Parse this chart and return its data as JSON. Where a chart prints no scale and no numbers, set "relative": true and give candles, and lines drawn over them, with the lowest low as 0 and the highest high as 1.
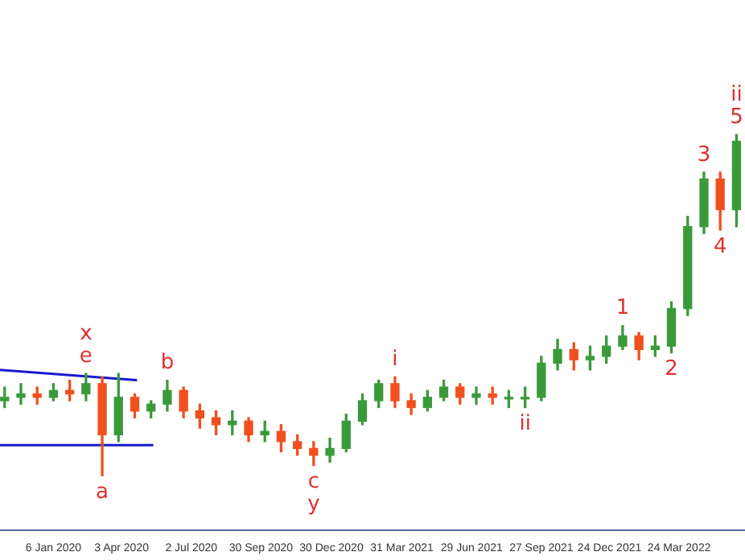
{
  "chart_data": {
    "type": "candlestick",
    "relative": true,
    "x": [
      "2019-11-04",
      "2019-11-25",
      "2019-12-16",
      "2020-01-06",
      "2020-01-27",
      "2020-02-17",
      "2020-03-09",
      "2020-03-30",
      "2020-04-20",
      "2020-05-11",
      "2020-06-01",
      "2020-06-22",
      "2020-07-13",
      "2020-08-03",
      "2020-08-24",
      "2020-09-14",
      "2020-10-05",
      "2020-10-26",
      "2020-11-16",
      "2020-12-07",
      "2020-12-28",
      "2021-01-18",
      "2021-02-08",
      "2021-03-01",
      "2021-03-22",
      "2021-04-12",
      "2021-05-03",
      "2021-05-24",
      "2021-06-14",
      "2021-07-05",
      "2021-07-26",
      "2021-08-16",
      "2021-09-06",
      "2021-09-27",
      "2021-10-18",
      "2021-11-08",
      "2021-11-29",
      "2021-12-20",
      "2022-01-10",
      "2022-01-31",
      "2022-02-21",
      "2022-03-14",
      "2022-04-04",
      "2022-04-25",
      "2022-05-16",
      "2022-06-06"
    ],
    "ohlc": [
      [
        0.22,
        0.26,
        0.2,
        0.23
      ],
      [
        0.23,
        0.27,
        0.21,
        0.24
      ],
      [
        0.24,
        0.26,
        0.21,
        0.23
      ],
      [
        0.23,
        0.27,
        0.22,
        0.25
      ],
      [
        0.25,
        0.28,
        0.22,
        0.24
      ],
      [
        0.24,
        0.3,
        0.22,
        0.27
      ],
      [
        0.27,
        0.29,
        0,
        0.12
      ],
      [
        0.12,
        0.3,
        0.1,
        0.23
      ],
      [
        0.23,
        0.24,
        0.17,
        0.19
      ],
      [
        0.19,
        0.22,
        0.17,
        0.21
      ],
      [
        0.21,
        0.28,
        0.19,
        0.25
      ],
      [
        0.25,
        0.26,
        0.17,
        0.19
      ],
      [
        0.19,
        0.21,
        0.14,
        0.17
      ],
      [
        0.17,
        0.19,
        0.12,
        0.15
      ],
      [
        0.15,
        0.19,
        0.12,
        0.16
      ],
      [
        0.16,
        0.17,
        0.1,
        0.12
      ],
      [
        0.12,
        0.16,
        0.1,
        0.13
      ],
      [
        0.13,
        0.15,
        0.07,
        0.1
      ],
      [
        0.1,
        0.12,
        0.06,
        0.08
      ],
      [
        0.08,
        0.1,
        0.03,
        0.06
      ],
      [
        0.06,
        0.11,
        0.04,
        0.08
      ],
      [
        0.08,
        0.18,
        0.07,
        0.16
      ],
      [
        0.16,
        0.24,
        0.15,
        0.22
      ],
      [
        0.22,
        0.28,
        0.2,
        0.27
      ],
      [
        0.27,
        0.29,
        0.2,
        0.22
      ],
      [
        0.22,
        0.24,
        0.18,
        0.2
      ],
      [
        0.2,
        0.25,
        0.19,
        0.23
      ],
      [
        0.23,
        0.28,
        0.22,
        0.26
      ],
      [
        0.26,
        0.27,
        0.21,
        0.23
      ],
      [
        0.23,
        0.26,
        0.21,
        0.24
      ],
      [
        0.24,
        0.26,
        0.21,
        0.23
      ],
      [
        0.23,
        0.25,
        0.2,
        0.23
      ],
      [
        0.23,
        0.26,
        0.2,
        0.23
      ],
      [
        0.23,
        0.35,
        0.22,
        0.33
      ],
      [
        0.33,
        0.4,
        0.31,
        0.37
      ],
      [
        0.37,
        0.39,
        0.31,
        0.34
      ],
      [
        0.34,
        0.38,
        0.31,
        0.35
      ],
      [
        0.35,
        0.41,
        0.33,
        0.38
      ],
      [
        0.38,
        0.44,
        0.37,
        0.41
      ],
      [
        0.41,
        0.42,
        0.34,
        0.37
      ],
      [
        0.37,
        0.41,
        0.35,
        0.38
      ],
      [
        0.38,
        0.51,
        0.36,
        0.49
      ],
      [
        0.49,
        0.76,
        0.47,
        0.73
      ],
      [
        0.73,
        0.89,
        0.71,
        0.87
      ],
      [
        0.87,
        0.89,
        0.72,
        0.78
      ],
      [
        0.78,
        1,
        0.73,
        0.98
      ]
    ],
    "colors": [
      "#3a9a3a",
      "#3a9a3a",
      "#f0501e",
      "#3a9a3a",
      "#f0501e",
      "#3a9a3a",
      "#f0501e",
      "#3a9a3a",
      "#f0501e",
      "#3a9a3a",
      "#3a9a3a",
      "#f0501e",
      "#f0501e",
      "#f0501e",
      "#3a9a3a",
      "#f0501e",
      "#3a9a3a",
      "#f0501e",
      "#f0501e",
      "#f0501e",
      "#3a9a3a",
      "#3a9a3a",
      "#3a9a3a",
      "#3a9a3a",
      "#f0501e",
      "#f0501e",
      "#3a9a3a",
      "#3a9a3a",
      "#f0501e",
      "#3a9a3a",
      "#f0501e",
      "#3a9a3a",
      "#3a9a3a",
      "#3a9a3a",
      "#3a9a3a",
      "#f0501e",
      "#3a9a3a",
      "#3a9a3a",
      "#3a9a3a",
      "#f0501e",
      "#3a9a3a",
      "#3a9a3a",
      "#3a9a3a",
      "#3a9a3a",
      "#f0501e",
      "#3a9a3a"
    ],
    "series": [
      {
        "type": "line",
        "color": "#1a1ad0",
        "x": [
          "2019-10-29",
          "2020-04-23"
        ],
        "values": [
          0.31,
          0.28
        ]
      },
      {
        "type": "line",
        "color": "#1a1ad0",
        "x": [
          "2019-10-29",
          "2020-05-14"
        ],
        "values": [
          0.09,
          0.09
        ]
      }
    ],
    "xlim": [
      "2019-10-29",
      "2022-06-17"
    ],
    "xticks": [
      {
        "value": "2020-01-06",
        "label": "6 Jan 2020"
      },
      {
        "value": "2020-04-03",
        "label": "3 Apr 2020"
      },
      {
        "value": "2020-07-02",
        "label": "2 Jul 2020"
      },
      {
        "value": "2020-09-30",
        "label": "30 Sep 2020"
      },
      {
        "value": "2020-12-30",
        "label": "30 Dec 2020"
      },
      {
        "value": "2021-03-31",
        "label": "31 Mar 2021"
      },
      {
        "value": "2021-06-29",
        "label": "29 Jun 2021"
      },
      {
        "value": "2021-09-27",
        "label": "27 Sep 2021"
      },
      {
        "value": "2021-12-24",
        "label": "24 Dec 2021"
      },
      {
        "value": "2022-03-24",
        "label": "24 Mar 2022"
      }
    ],
    "annotations": [
      {
        "text": "e",
        "x": "2020-02-17",
        "y": 0.3
      },
      {
        "text": "x",
        "x": "2020-02-17",
        "y": 0.3
      },
      {
        "text": "a",
        "x": "2020-03-09",
        "y": 0
      },
      {
        "text": "b",
        "x": "2020-06-01",
        "y": 0.28
      },
      {
        "text": "c",
        "x": "2020-12-07",
        "y": 0.03
      },
      {
        "text": "y",
        "x": "2020-12-07",
        "y": 0.03
      },
      {
        "text": "i",
        "x": "2021-03-22",
        "y": 0.29
      },
      {
        "text": "ii",
        "x": "2021-09-06",
        "y": 0.2
      },
      {
        "text": "1",
        "x": "2022-01-10",
        "y": 0.44
      },
      {
        "text": "2",
        "x": "2022-03-14",
        "y": 0.36
      },
      {
        "text": "3",
        "x": "2022-04-25",
        "y": 0.89
      },
      {
        "text": "4",
        "x": "2022-05-16",
        "y": 0.72
      },
      {
        "text": "5",
        "x": "2022-06-06",
        "y": 1
      },
      {
        "text": "ii",
        "x": "2022-06-06",
        "y": 1
      }
    ]
  }
}
